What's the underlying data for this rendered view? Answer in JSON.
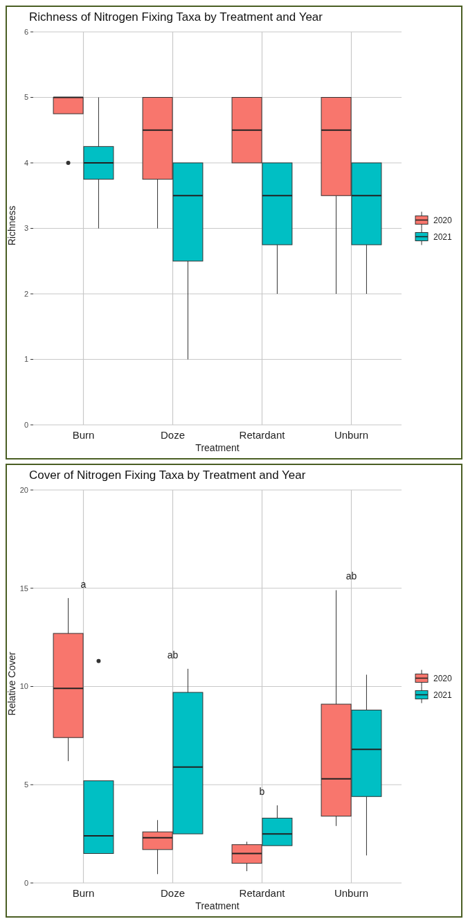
{
  "chart_data": [
    {
      "type": "box",
      "title": "Richness of Nitrogen Fixing Taxa by Treatment and Year",
      "xlabel": "Treatment",
      "ylabel": "Richness",
      "categories": [
        "Burn",
        "Doze",
        "Retardant",
        "Unburn"
      ],
      "ylim": [
        0,
        6
      ],
      "yticks": [
        0,
        1,
        2,
        3,
        4,
        5,
        6
      ],
      "grid": true,
      "legend": "right",
      "series": [
        {
          "name": "2020",
          "color": "#f8766d",
          "boxes": [
            {
              "low": 4.75,
              "q1": 4.75,
              "median": 5,
              "q3": 5,
              "high": 5,
              "outliers": [
                4
              ]
            },
            {
              "low": 3,
              "q1": 3.75,
              "median": 4.5,
              "q3": 5,
              "high": 5
            },
            {
              "low": 4,
              "q1": 4,
              "median": 4.5,
              "q3": 5,
              "high": 5
            },
            {
              "low": 2,
              "q1": 3.5,
              "median": 4.5,
              "q3": 5,
              "high": 5
            }
          ]
        },
        {
          "name": "2021",
          "color": "#00bfc4",
          "boxes": [
            {
              "low": 3,
              "q1": 3.75,
              "median": 4,
              "q3": 4.25,
              "high": 5
            },
            {
              "low": 1,
              "q1": 2.5,
              "median": 3.5,
              "q3": 4,
              "high": 4
            },
            {
              "low": 2,
              "q1": 2.75,
              "median": 3.5,
              "q3": 4,
              "high": 4
            },
            {
              "low": 2,
              "q1": 2.75,
              "median": 3.5,
              "q3": 4,
              "high": 4
            }
          ]
        }
      ]
    },
    {
      "type": "box",
      "title": "Cover of Nitrogen Fixing Taxa by Treatment and Year",
      "xlabel": "Treatment",
      "ylabel": "Relative Cover",
      "categories": [
        "Burn",
        "Doze",
        "Retardant",
        "Unburn"
      ],
      "ylim": [
        0,
        20
      ],
      "yticks": [
        0,
        5,
        10,
        15,
        20
      ],
      "grid": true,
      "legend": "right",
      "annotations": [
        "a",
        "ab",
        "b",
        "ab"
      ],
      "series": [
        {
          "name": "2020",
          "color": "#f8766d",
          "boxes": [
            {
              "low": 6.2,
              "q1": 7.4,
              "median": 9.9,
              "q3": 12.7,
              "high": 14.5
            },
            {
              "low": 0.45,
              "q1": 1.7,
              "median": 2.3,
              "q3": 2.6,
              "high": 3.2
            },
            {
              "low": 0.6,
              "q1": 1,
              "median": 1.5,
              "q3": 1.95,
              "high": 2.1
            },
            {
              "low": 2.9,
              "q1": 3.4,
              "median": 5.3,
              "q3": 9.1,
              "high": 14.9
            }
          ]
        },
        {
          "name": "2021",
          "color": "#00bfc4",
          "boxes": [
            {
              "low": 1.5,
              "q1": 1.5,
              "median": 2.4,
              "q3": 5.2,
              "high": 5.2,
              "outliers": [
                11.3
              ]
            },
            {
              "low": 2.5,
              "q1": 2.5,
              "median": 5.9,
              "q3": 9.7,
              "high": 10.9
            },
            {
              "low": 1.9,
              "q1": 1.9,
              "median": 2.5,
              "q3": 3.3,
              "high": 3.95
            },
            {
              "low": 1.4,
              "q1": 4.4,
              "median": 6.8,
              "q3": 8.8,
              "high": 10.6
            }
          ]
        }
      ]
    }
  ]
}
